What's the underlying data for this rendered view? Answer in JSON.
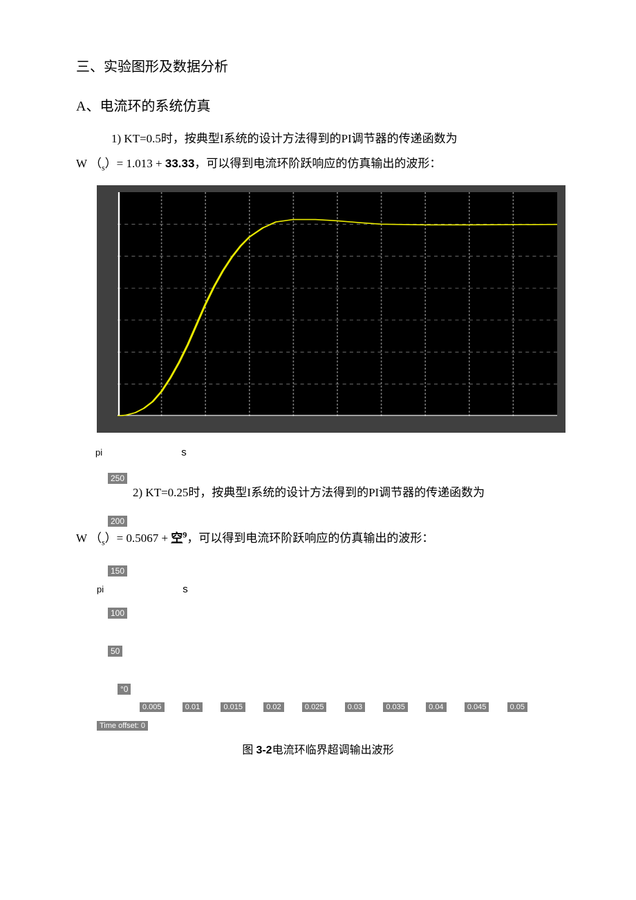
{
  "heading_main": "三、实验图形及数据分析",
  "heading_sub": "A、电流环的系统仿真",
  "para1_prefix": "1)  KT=0.5时，按典型I系统的设计方法得到的PI调节器的传递函数为",
  "f1": {
    "lhs": "W",
    "sub": "pi",
    "arg": "s",
    "k": "1.013",
    "num": "33.33",
    "den": "s"
  },
  "para1_suffix": "，可以得到电流环阶跃响应的仿真输出的波形：",
  "scope": {
    "bg": "#404040",
    "plot_bg": "#000000",
    "grid_color": "#808080",
    "axis_color": "#ffffff",
    "line_color": "#e8e800",
    "grid_x": [
      0.1,
      0.2,
      0.3,
      0.4,
      0.5,
      0.6,
      0.7,
      0.8,
      0.9
    ],
    "grid_y": [
      0.143,
      0.286,
      0.429,
      0.571,
      0.714,
      0.857
    ],
    "response": [
      [
        0.0,
        0.0
      ],
      [
        0.02,
        0.005
      ],
      [
        0.04,
        0.015
      ],
      [
        0.06,
        0.035
      ],
      [
        0.08,
        0.065
      ],
      [
        0.1,
        0.11
      ],
      [
        0.12,
        0.17
      ],
      [
        0.14,
        0.24
      ],
      [
        0.16,
        0.32
      ],
      [
        0.18,
        0.41
      ],
      [
        0.2,
        0.5
      ],
      [
        0.22,
        0.58
      ],
      [
        0.24,
        0.65
      ],
      [
        0.26,
        0.71
      ],
      [
        0.28,
        0.76
      ],
      [
        0.3,
        0.8
      ],
      [
        0.33,
        0.84
      ],
      [
        0.36,
        0.867
      ],
      [
        0.4,
        0.878
      ],
      [
        0.45,
        0.878
      ],
      [
        0.5,
        0.872
      ],
      [
        0.55,
        0.864
      ],
      [
        0.6,
        0.857
      ],
      [
        0.7,
        0.854
      ],
      [
        0.8,
        0.854
      ],
      [
        0.9,
        0.855
      ],
      [
        1.0,
        0.856
      ]
    ]
  },
  "pi": "pi",
  "s": "s",
  "ylabels": [
    "250",
    "200",
    "150",
    "100",
    "50",
    "°0"
  ],
  "para2_prefix": "2)  KT=0.25时，按典型I系统的设计方法得到的PI调节器的传递函数为",
  "f2": {
    "lhs": "W",
    "arg": "s",
    "k": "0.5067",
    "under": "空",
    "sup": "9"
  },
  "para2_suffix": "，可以得到电流环阶跃响应的仿真输出的波形：",
  "xlabels": [
    "0.005",
    "0.01",
    "0.015",
    "0.02",
    "0.025",
    "0.03",
    "0.035",
    "0.04",
    "0.045",
    "0.05"
  ],
  "time_offset": "Time offset: 0",
  "caption_a": "图 ",
  "caption_b": "3-2",
  "caption_c": "电流环临界超调输出波形"
}
